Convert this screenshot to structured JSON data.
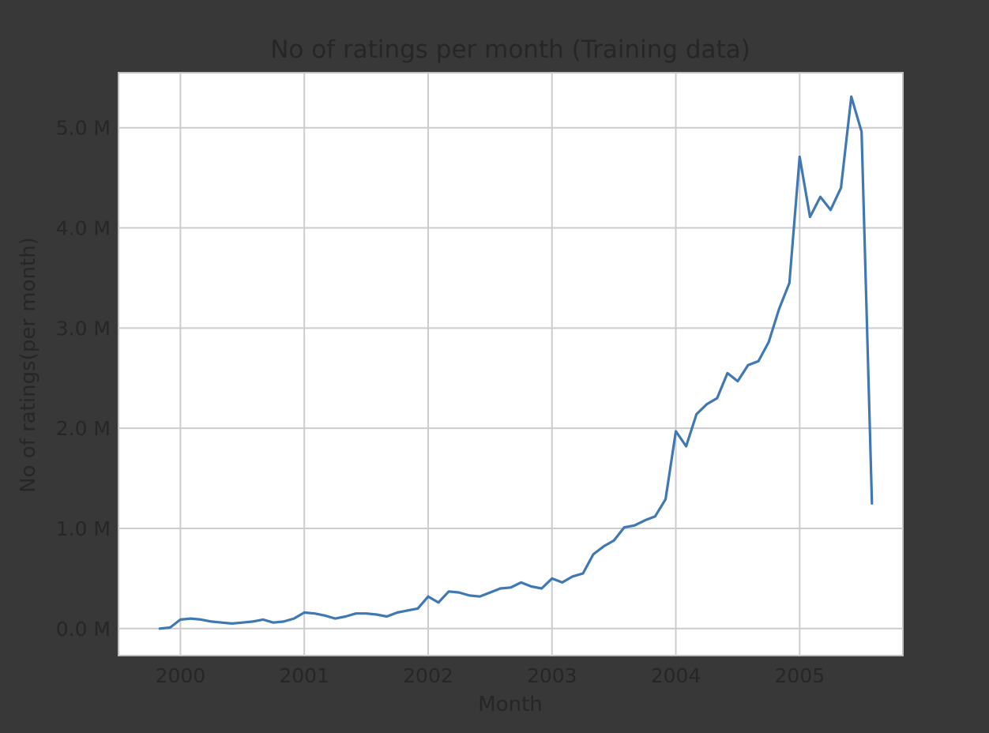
{
  "chart_data": {
    "type": "line",
    "title": "No of ratings per month (Training data)",
    "xlabel": "Month",
    "ylabel": "No of ratings(per month)",
    "x_ticks": [
      "2000",
      "2001",
      "2002",
      "2003",
      "2004",
      "2005"
    ],
    "y_ticks": [
      "0.0 M",
      "1.0 M",
      "2.0 M",
      "3.0 M",
      "4.0 M",
      "5.0 M"
    ],
    "xlim": [
      "1999-07",
      "2005-11"
    ],
    "ylim": [
      -0.27,
      5.55
    ],
    "grid": true,
    "series": [
      {
        "color": "#4078b4",
        "x": [
          "1999-11",
          "1999-12",
          "2000-01",
          "2000-02",
          "2000-03",
          "2000-04",
          "2000-05",
          "2000-06",
          "2000-07",
          "2000-08",
          "2000-09",
          "2000-10",
          "2000-11",
          "2000-12",
          "2001-01",
          "2001-02",
          "2001-03",
          "2001-04",
          "2001-05",
          "2001-06",
          "2001-07",
          "2001-08",
          "2001-09",
          "2001-10",
          "2001-11",
          "2001-12",
          "2002-01",
          "2002-02",
          "2002-03",
          "2002-04",
          "2002-05",
          "2002-06",
          "2002-07",
          "2002-08",
          "2002-09",
          "2002-10",
          "2002-11",
          "2002-12",
          "2003-01",
          "2003-02",
          "2003-03",
          "2003-04",
          "2003-05",
          "2003-06",
          "2003-07",
          "2003-08",
          "2003-09",
          "2003-10",
          "2003-11",
          "2003-12",
          "2004-01",
          "2004-02",
          "2004-03",
          "2004-04",
          "2004-05",
          "2004-06",
          "2004-07",
          "2004-08",
          "2004-09",
          "2004-10",
          "2004-11",
          "2004-12",
          "2005-01",
          "2005-02",
          "2005-03",
          "2005-04",
          "2005-05",
          "2005-06",
          "2005-07",
          "2005-08"
        ],
        "values": [
          0.0,
          0.01,
          0.09,
          0.1,
          0.09,
          0.07,
          0.06,
          0.05,
          0.06,
          0.07,
          0.09,
          0.06,
          0.07,
          0.1,
          0.16,
          0.15,
          0.13,
          0.1,
          0.12,
          0.15,
          0.15,
          0.14,
          0.12,
          0.16,
          0.18,
          0.2,
          0.32,
          0.26,
          0.37,
          0.36,
          0.33,
          0.32,
          0.36,
          0.4,
          0.41,
          0.46,
          0.42,
          0.4,
          0.5,
          0.46,
          0.52,
          0.55,
          0.74,
          0.82,
          0.88,
          1.01,
          1.03,
          1.08,
          1.12,
          1.29,
          1.97,
          1.82,
          2.14,
          2.24,
          2.3,
          2.55,
          2.47,
          2.63,
          2.67,
          2.86,
          3.19,
          3.45,
          4.71,
          4.11,
          4.31,
          4.18,
          4.4,
          5.31,
          4.96,
          1.25
        ]
      }
    ]
  }
}
